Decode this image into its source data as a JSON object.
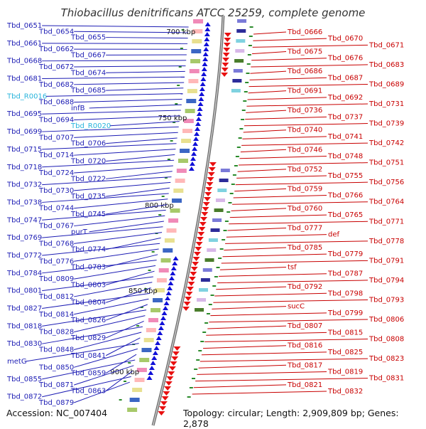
{
  "title": "Thiobacillus denitrificans ATCC 25259, complete genome",
  "footer": {
    "accession": "Accession: NC_007404",
    "topology": "Topology: circular; Length: 2,909,809 bp; Genes: 2,878"
  },
  "colors": {
    "left_label": "#1c1cb4",
    "left_rna_label": "#28b4dc",
    "right_label": "#c80000",
    "left_feature": "#1010d8",
    "right_feature": "#e81010",
    "backbone": "#9a9a9a",
    "tick": "#2a8a2a"
  },
  "scale_labels": [
    "700 kbp",
    "750 kbp",
    "800 kbp",
    "850 kbp",
    "900 kbp"
  ],
  "left_labels": [
    {
      "text": "Tbd_0651",
      "rna": false
    },
    {
      "text": "Tbd_0654",
      "rna": false
    },
    {
      "text": "Tbd_0655",
      "rna": false
    },
    {
      "text": "Tbd_0661",
      "rna": false
    },
    {
      "text": "Tbd_0662",
      "rna": false
    },
    {
      "text": "Tbd_0667",
      "rna": false
    },
    {
      "text": "Tbd_0668",
      "rna": false
    },
    {
      "text": "Tbd_0672",
      "rna": false
    },
    {
      "text": "Tbd_0674",
      "rna": false
    },
    {
      "text": "Tbd_0681",
      "rna": false
    },
    {
      "text": "Tbd_0682",
      "rna": false
    },
    {
      "text": "Tbd_0685",
      "rna": false
    },
    {
      "text": "Tbd_R0016",
      "rna": true
    },
    {
      "text": "Tbd_0688",
      "rna": false
    },
    {
      "text": "infB",
      "rna": false
    },
    {
      "text": "Tbd_0695",
      "rna": false
    },
    {
      "text": "Tbd_0694",
      "rna": false
    },
    {
      "text": "Tbd_R0020",
      "rna": true
    },
    {
      "text": "Tbd_0699",
      "rna": false
    },
    {
      "text": "Tbd_0707",
      "rna": false
    },
    {
      "text": "Tbd_0706",
      "rna": false
    },
    {
      "text": "Tbd_0715",
      "rna": false
    },
    {
      "text": "Tbd_0714",
      "rna": false
    },
    {
      "text": "Tbd_0720",
      "rna": false
    },
    {
      "text": "Tbd_0718",
      "rna": false
    },
    {
      "text": "Tbd_0724",
      "rna": false
    },
    {
      "text": "Tbd_0722",
      "rna": false
    },
    {
      "text": "Tbd_0732",
      "rna": false
    },
    {
      "text": "Tbd_0730",
      "rna": false
    },
    {
      "text": "Tbd_0735",
      "rna": false
    },
    {
      "text": "Tbd_0738",
      "rna": false
    },
    {
      "text": "Tbd_0744",
      "rna": false
    },
    {
      "text": "Tbd_0745",
      "rna": false
    },
    {
      "text": "Tbd_0747",
      "rna": false
    },
    {
      "text": "Tbd_0767",
      "rna": false
    },
    {
      "text": "purT",
      "rna": false
    },
    {
      "text": "Tbd_0769",
      "rna": false
    },
    {
      "text": "Tbd_0768",
      "rna": false
    },
    {
      "text": "Tbd_0774",
      "rna": false
    },
    {
      "text": "Tbd_0772",
      "rna": false
    },
    {
      "text": "Tbd_0776",
      "rna": false
    },
    {
      "text": "Tbd_0783",
      "rna": false
    },
    {
      "text": "Tbd_0784",
      "rna": false
    },
    {
      "text": "Tbd_0809",
      "rna": false
    },
    {
      "text": "Tbd_0803",
      "rna": false
    },
    {
      "text": "Tbd_0801",
      "rna": false
    },
    {
      "text": "Tbd_0812",
      "rna": false
    },
    {
      "text": "Tbd_0804",
      "rna": false
    },
    {
      "text": "Tbd_0827",
      "rna": false
    },
    {
      "text": "Tbd_0814",
      "rna": false
    },
    {
      "text": "Tbd_0826",
      "rna": false
    },
    {
      "text": "Tbd_0818",
      "rna": false
    },
    {
      "text": "Tbd_0828",
      "rna": false
    },
    {
      "text": "Tbd_0829",
      "rna": false
    },
    {
      "text": "Tbd_0830",
      "rna": false
    },
    {
      "text": "Tbd_0848",
      "rna": false
    },
    {
      "text": "Tbd_0841",
      "rna": false
    },
    {
      "text": "metG",
      "rna": false
    },
    {
      "text": "Tbd_0850",
      "rna": false
    },
    {
      "text": "Tbd_0859",
      "rna": false
    },
    {
      "text": "Tbd_0855",
      "rna": false
    },
    {
      "text": "Tbd_0871",
      "rna": false
    },
    {
      "text": "Tbd_0863",
      "rna": false
    },
    {
      "text": "Tbd_0872",
      "rna": false
    },
    {
      "text": "Tbd_0879",
      "rna": false
    }
  ],
  "right_labels": [
    {
      "text": "Tbd_0666"
    },
    {
      "text": "Tbd_0670"
    },
    {
      "text": "Tbd_0671"
    },
    {
      "text": "Tbd_0675"
    },
    {
      "text": "Tbd_0676"
    },
    {
      "text": "Tbd_0683"
    },
    {
      "text": "Tbd_0686"
    },
    {
      "text": "Tbd_0687"
    },
    {
      "text": "Tbd_0689"
    },
    {
      "text": "Tbd_0691"
    },
    {
      "text": "Tbd_0692"
    },
    {
      "text": "Tbd_0731"
    },
    {
      "text": "Tbd_0736"
    },
    {
      "text": "Tbd_0737"
    },
    {
      "text": "Tbd_0739"
    },
    {
      "text": "Tbd_0740"
    },
    {
      "text": "Tbd_0741"
    },
    {
      "text": "Tbd_0742"
    },
    {
      "text": "Tbd_0746"
    },
    {
      "text": "Tbd_0748"
    },
    {
      "text": "Tbd_0751"
    },
    {
      "text": "Tbd_0752"
    },
    {
      "text": "Tbd_0755"
    },
    {
      "text": "Tbd_0756"
    },
    {
      "text": "Tbd_0759"
    },
    {
      "text": "Tbd_0766"
    },
    {
      "text": "Tbd_0764"
    },
    {
      "text": "Tbd_0760"
    },
    {
      "text": "Tbd_0765"
    },
    {
      "text": "Tbd_0771"
    },
    {
      "text": "Tbd_0777"
    },
    {
      "text": "def"
    },
    {
      "text": "Tbd_0778"
    },
    {
      "text": "Tbd_0785"
    },
    {
      "text": "Tbd_0779"
    },
    {
      "text": "Tbd_0791"
    },
    {
      "text": "tsf"
    },
    {
      "text": "Tbd_0787"
    },
    {
      "text": "Tbd_0794"
    },
    {
      "text": "Tbd_0792"
    },
    {
      "text": "Tbd_0798"
    },
    {
      "text": "Tbd_0793"
    },
    {
      "text": "sucC"
    },
    {
      "text": "Tbd_0799"
    },
    {
      "text": "Tbd_0806"
    },
    {
      "text": "Tbd_0807"
    },
    {
      "text": "Tbd_0815"
    },
    {
      "text": "Tbd_0808"
    },
    {
      "text": "Tbd_0816"
    },
    {
      "text": "Tbd_0825"
    },
    {
      "text": "Tbd_0823"
    },
    {
      "text": "Tbd_0817"
    },
    {
      "text": "Tbd_0819"
    },
    {
      "text": "Tbd_0831"
    },
    {
      "text": "Tbd_0821"
    },
    {
      "text": "Tbd_0832"
    }
  ]
}
